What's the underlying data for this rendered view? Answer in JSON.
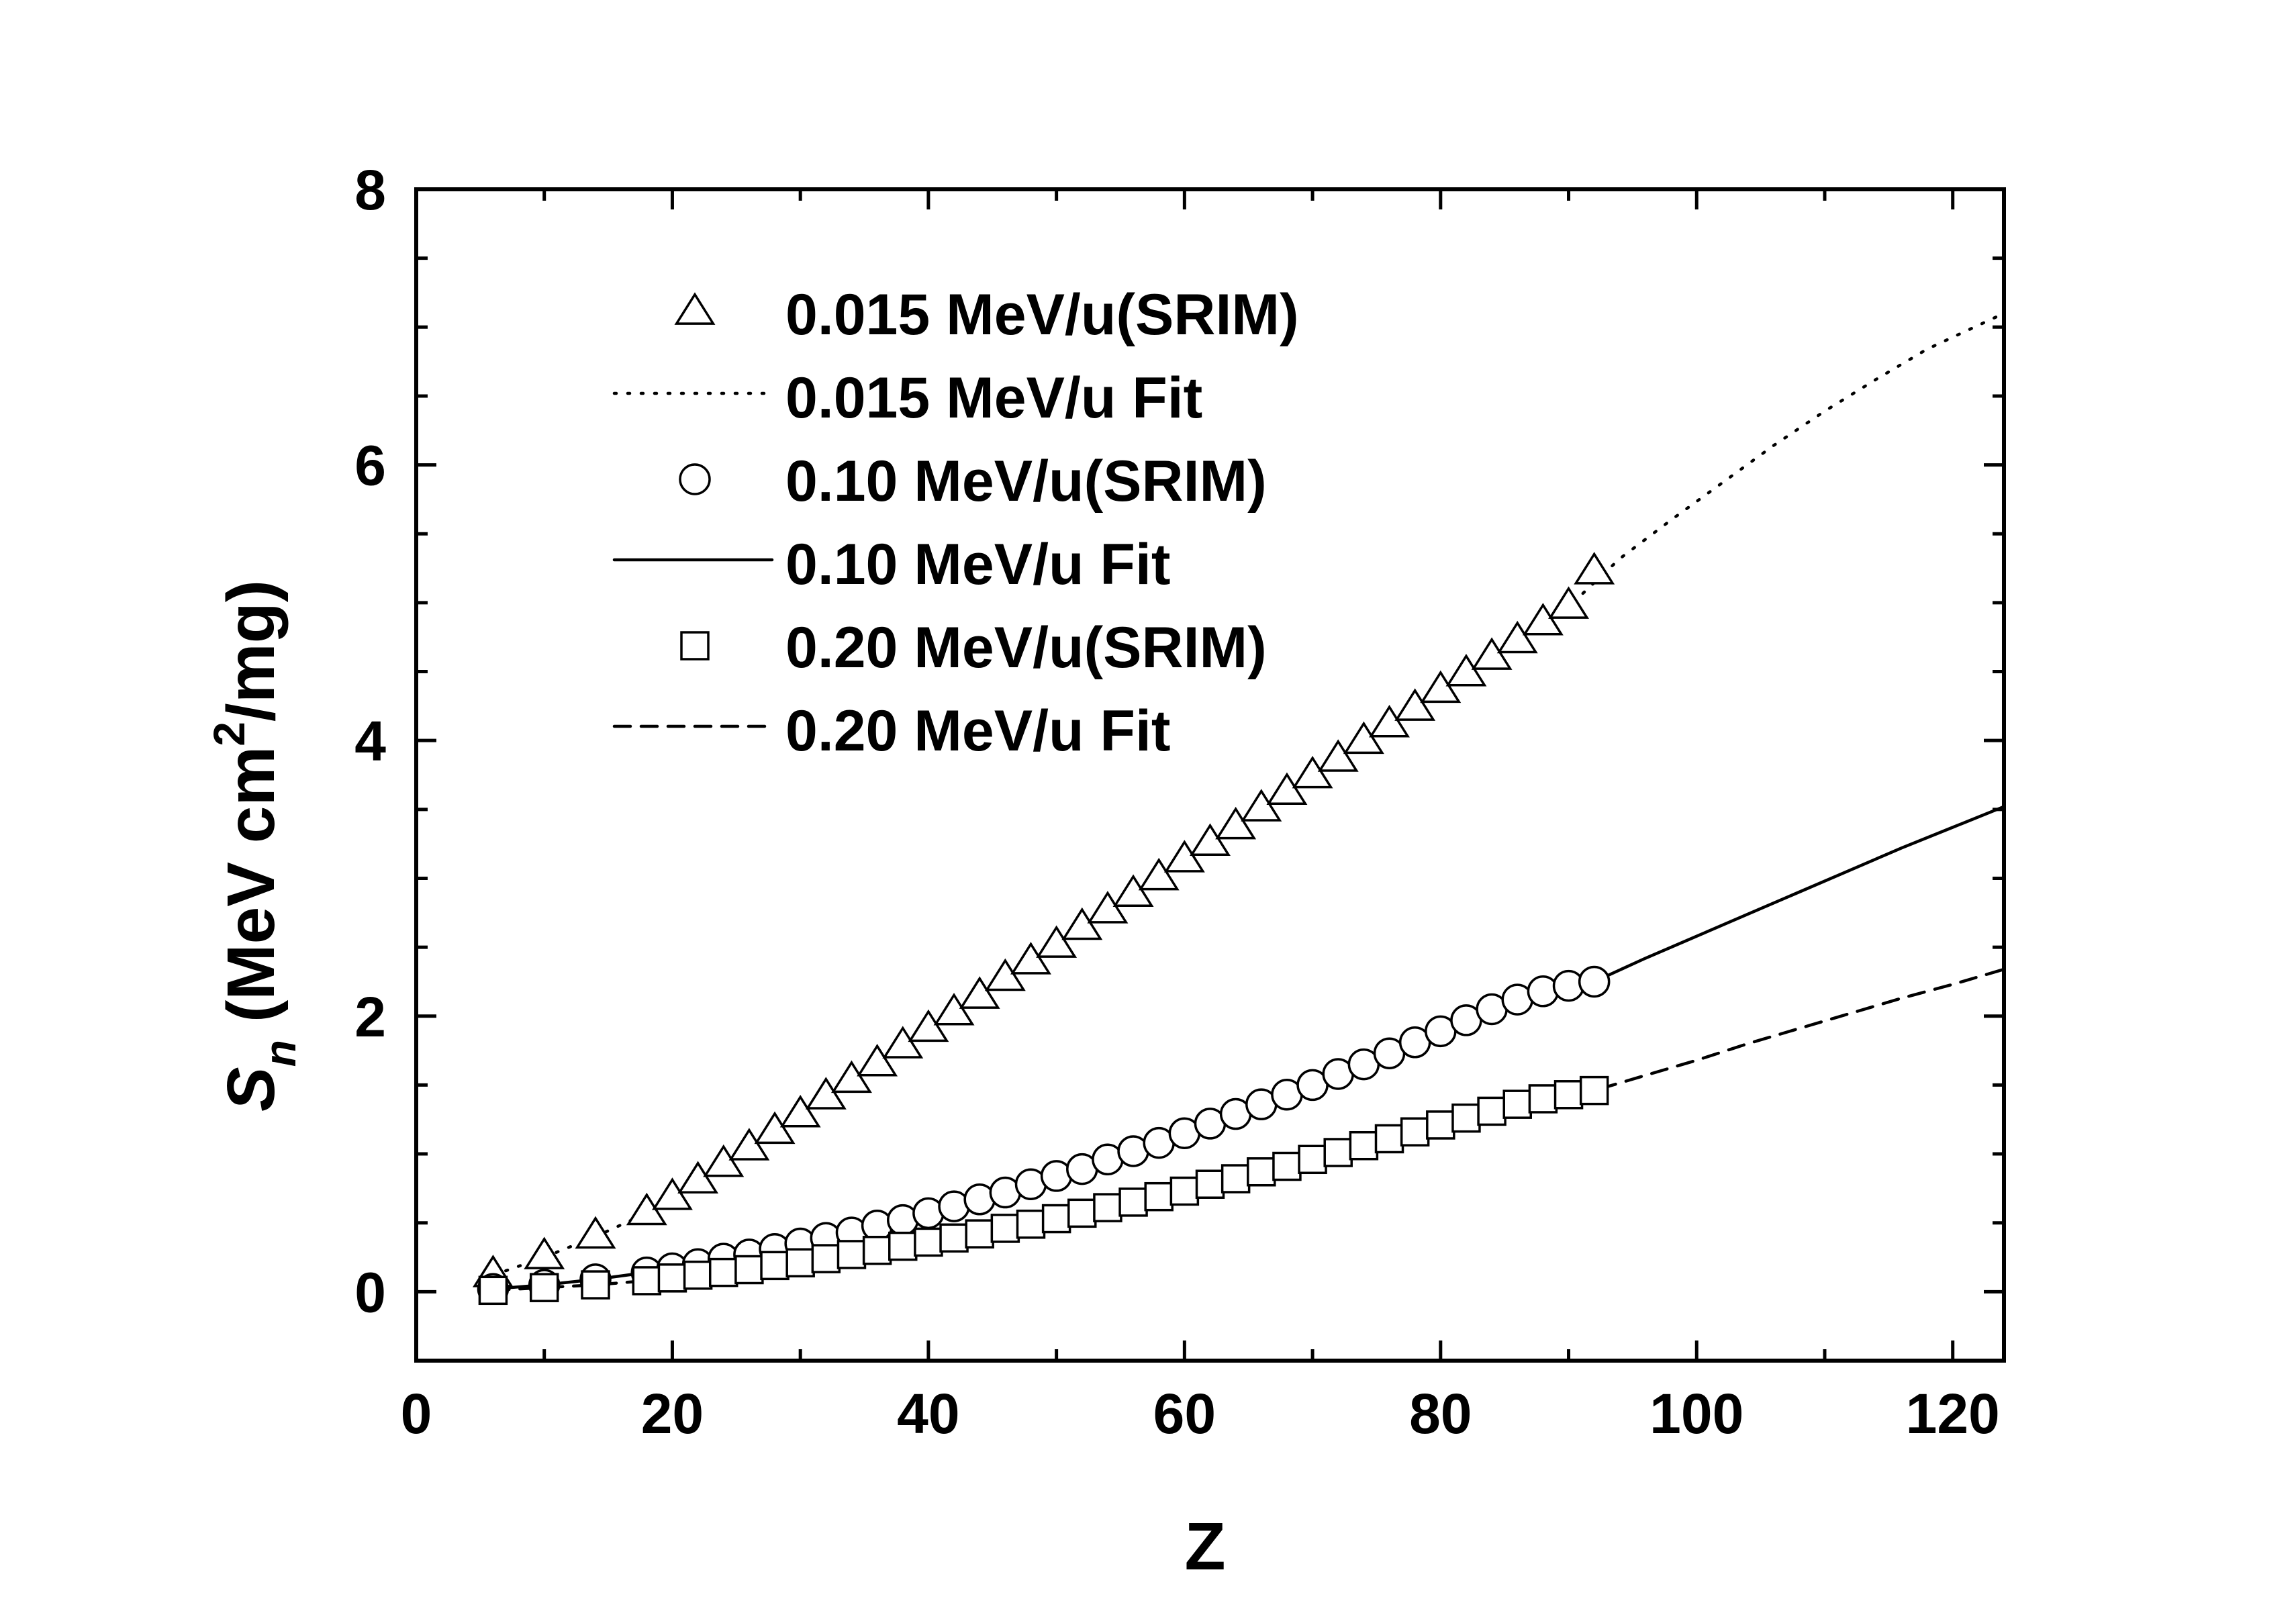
{
  "chart_data": {
    "type": "scatter",
    "title": "",
    "xlabel": "Z",
    "ylabel": {
      "symbol": "S",
      "subscript": "n",
      "units_prefix": "(MeV cm",
      "units_superscript": "2",
      "units_suffix": "/mg)"
    },
    "xlim": [
      0,
      124
    ],
    "ylim": [
      -0.5,
      8
    ],
    "xticks": [
      0,
      20,
      40,
      60,
      80,
      100,
      120
    ],
    "yticks": [
      0,
      2,
      4,
      6,
      8
    ],
    "grid": false,
    "legend_position": "top-left",
    "series": [
      {
        "name": "0.015 MeV/u(SRIM)",
        "kind": "points",
        "marker": "triangle",
        "x": [
          6,
          10,
          14,
          18,
          20,
          22,
          24,
          26,
          28,
          30,
          32,
          34,
          36,
          38,
          40,
          42,
          44,
          46,
          48,
          50,
          52,
          54,
          56,
          58,
          60,
          62,
          64,
          66,
          68,
          70,
          72,
          74,
          76,
          78,
          80,
          82,
          84,
          86,
          88,
          90,
          92
        ],
        "y": [
          0.12,
          0.25,
          0.4,
          0.57,
          0.68,
          0.8,
          0.92,
          1.04,
          1.16,
          1.28,
          1.41,
          1.53,
          1.65,
          1.78,
          1.9,
          2.02,
          2.14,
          2.27,
          2.39,
          2.51,
          2.64,
          2.76,
          2.88,
          3.0,
          3.13,
          3.25,
          3.37,
          3.5,
          3.62,
          3.74,
          3.86,
          3.99,
          4.11,
          4.23,
          4.36,
          4.48,
          4.6,
          4.72,
          4.85,
          4.97,
          5.22
        ]
      },
      {
        "name": "0.015 MeV/u Fit",
        "kind": "line",
        "dash": "dotted",
        "x": [
          6,
          10,
          14,
          18,
          22,
          26,
          30,
          34,
          38,
          42,
          46,
          50,
          54,
          58,
          62,
          66,
          70,
          74,
          78,
          82,
          86,
          90,
          94,
          98,
          102,
          106,
          110,
          114,
          118,
          124
        ],
        "y": [
          0.12,
          0.25,
          0.4,
          0.57,
          0.8,
          1.04,
          1.28,
          1.53,
          1.78,
          2.02,
          2.27,
          2.51,
          2.76,
          3.0,
          3.25,
          3.5,
          3.74,
          3.99,
          4.23,
          4.48,
          4.72,
          4.97,
          5.32,
          5.6,
          5.87,
          6.14,
          6.39,
          6.62,
          6.84,
          7.1
        ]
      },
      {
        "name": "0.10 MeV/u(SRIM)",
        "kind": "points",
        "marker": "circle",
        "x": [
          6,
          10,
          14,
          18,
          20,
          22,
          24,
          26,
          28,
          30,
          32,
          34,
          36,
          38,
          40,
          42,
          44,
          46,
          48,
          50,
          52,
          54,
          56,
          58,
          60,
          62,
          64,
          66,
          68,
          70,
          72,
          74,
          76,
          78,
          80,
          82,
          84,
          86,
          88,
          90,
          92
        ],
        "y": [
          0.02,
          0.05,
          0.09,
          0.14,
          0.17,
          0.2,
          0.24,
          0.27,
          0.31,
          0.35,
          0.39,
          0.43,
          0.48,
          0.52,
          0.57,
          0.62,
          0.67,
          0.72,
          0.78,
          0.84,
          0.89,
          0.96,
          1.02,
          1.08,
          1.15,
          1.22,
          1.29,
          1.36,
          1.43,
          1.5,
          1.58,
          1.65,
          1.73,
          1.81,
          1.89,
          1.97,
          2.05,
          2.12,
          2.18,
          2.22,
          2.25
        ]
      },
      {
        "name": "0.10 MeV/u Fit",
        "kind": "line",
        "dash": "solid",
        "x": [
          6,
          10,
          14,
          18,
          22,
          26,
          30,
          34,
          38,
          42,
          46,
          50,
          54,
          58,
          62,
          66,
          70,
          74,
          78,
          82,
          86,
          90,
          92,
          96,
          100,
          104,
          108,
          112,
          116,
          120,
          124
        ],
        "y": [
          0.02,
          0.05,
          0.09,
          0.14,
          0.2,
          0.27,
          0.35,
          0.43,
          0.52,
          0.62,
          0.72,
          0.84,
          0.96,
          1.08,
          1.22,
          1.36,
          1.5,
          1.65,
          1.81,
          1.97,
          2.12,
          2.22,
          2.25,
          2.42,
          2.58,
          2.74,
          2.9,
          3.06,
          3.22,
          3.37,
          3.52
        ]
      },
      {
        "name": "0.20 MeV/u(SRIM)",
        "kind": "points",
        "marker": "square",
        "x": [
          6,
          10,
          14,
          18,
          20,
          22,
          24,
          26,
          28,
          30,
          32,
          34,
          36,
          38,
          40,
          42,
          44,
          46,
          48,
          50,
          52,
          54,
          56,
          58,
          60,
          62,
          64,
          66,
          68,
          70,
          72,
          74,
          76,
          78,
          80,
          82,
          84,
          86,
          88,
          90,
          92
        ],
        "y": [
          0.01,
          0.03,
          0.05,
          0.08,
          0.1,
          0.12,
          0.14,
          0.16,
          0.19,
          0.21,
          0.24,
          0.27,
          0.3,
          0.33,
          0.36,
          0.39,
          0.42,
          0.46,
          0.49,
          0.53,
          0.57,
          0.61,
          0.65,
          0.69,
          0.73,
          0.78,
          0.82,
          0.87,
          0.91,
          0.96,
          1.01,
          1.06,
          1.11,
          1.16,
          1.21,
          1.26,
          1.31,
          1.36,
          1.4,
          1.43,
          1.46
        ]
      },
      {
        "name": "0.20 MeV/u Fit",
        "kind": "line",
        "dash": "dashed",
        "x": [
          6,
          10,
          14,
          18,
          22,
          26,
          30,
          34,
          38,
          42,
          46,
          50,
          54,
          58,
          62,
          66,
          70,
          74,
          78,
          82,
          86,
          90,
          92,
          96,
          100,
          104,
          108,
          112,
          116,
          120,
          124
        ],
        "y": [
          0.01,
          0.03,
          0.05,
          0.08,
          0.12,
          0.16,
          0.21,
          0.27,
          0.33,
          0.39,
          0.46,
          0.53,
          0.61,
          0.69,
          0.78,
          0.87,
          0.96,
          1.06,
          1.16,
          1.26,
          1.36,
          1.43,
          1.46,
          1.57,
          1.68,
          1.8,
          1.91,
          2.02,
          2.13,
          2.23,
          2.34
        ]
      }
    ]
  }
}
